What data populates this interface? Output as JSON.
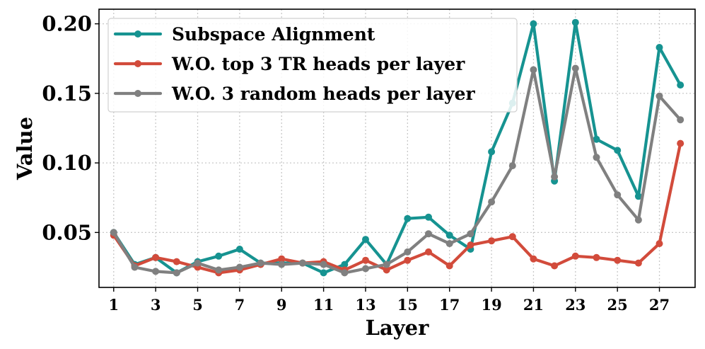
{
  "chart_data": {
    "type": "line",
    "title": "",
    "xlabel": "Layer",
    "ylabel": "Value",
    "xlim": [
      0.3,
      28.7
    ],
    "ylim": [
      0.0105,
      0.2105
    ],
    "x_ticks": [
      1,
      3,
      5,
      7,
      9,
      11,
      13,
      15,
      17,
      19,
      21,
      23,
      25,
      27
    ],
    "y_ticks": [
      0.05,
      0.1,
      0.15,
      0.2
    ],
    "y_tick_labels": [
      "0.05",
      "0.10",
      "0.15",
      "0.20"
    ],
    "grid": true,
    "legend_position": "top-left",
    "x": [
      1,
      2,
      3,
      4,
      5,
      6,
      7,
      8,
      9,
      10,
      11,
      12,
      13,
      14,
      15,
      16,
      17,
      18,
      19,
      20,
      21,
      22,
      23,
      24,
      25,
      26,
      27,
      28
    ],
    "series": [
      {
        "name": "Subspace Alignment",
        "color": "#169391",
        "values": [
          0.05,
          0.027,
          0.032,
          0.021,
          0.029,
          0.033,
          0.038,
          0.028,
          0.028,
          0.028,
          0.021,
          0.027,
          0.045,
          0.027,
          0.06,
          0.061,
          0.048,
          0.038,
          0.108,
          0.143,
          0.2,
          0.087,
          0.201,
          0.117,
          0.109,
          0.076,
          0.183,
          0.156
        ]
      },
      {
        "name": "W.O. top 3 TR heads per layer",
        "color": "#d24b3b",
        "values": [
          0.048,
          0.026,
          0.032,
          0.029,
          0.025,
          0.021,
          0.023,
          0.027,
          0.031,
          0.028,
          0.029,
          0.023,
          0.03,
          0.023,
          0.03,
          0.036,
          0.026,
          0.041,
          0.044,
          0.047,
          0.031,
          0.026,
          0.033,
          0.032,
          0.03,
          0.028,
          0.042,
          0.114
        ]
      },
      {
        "name": "W.O. 3 random heads per layer",
        "color": "#808080",
        "values": [
          0.05,
          0.025,
          0.022,
          0.021,
          0.028,
          0.023,
          0.025,
          0.028,
          0.027,
          0.028,
          0.027,
          0.021,
          0.024,
          0.027,
          0.036,
          0.049,
          0.042,
          0.049,
          0.072,
          0.098,
          0.167,
          0.09,
          0.168,
          0.104,
          0.077,
          0.059,
          0.148,
          0.131
        ]
      }
    ]
  }
}
